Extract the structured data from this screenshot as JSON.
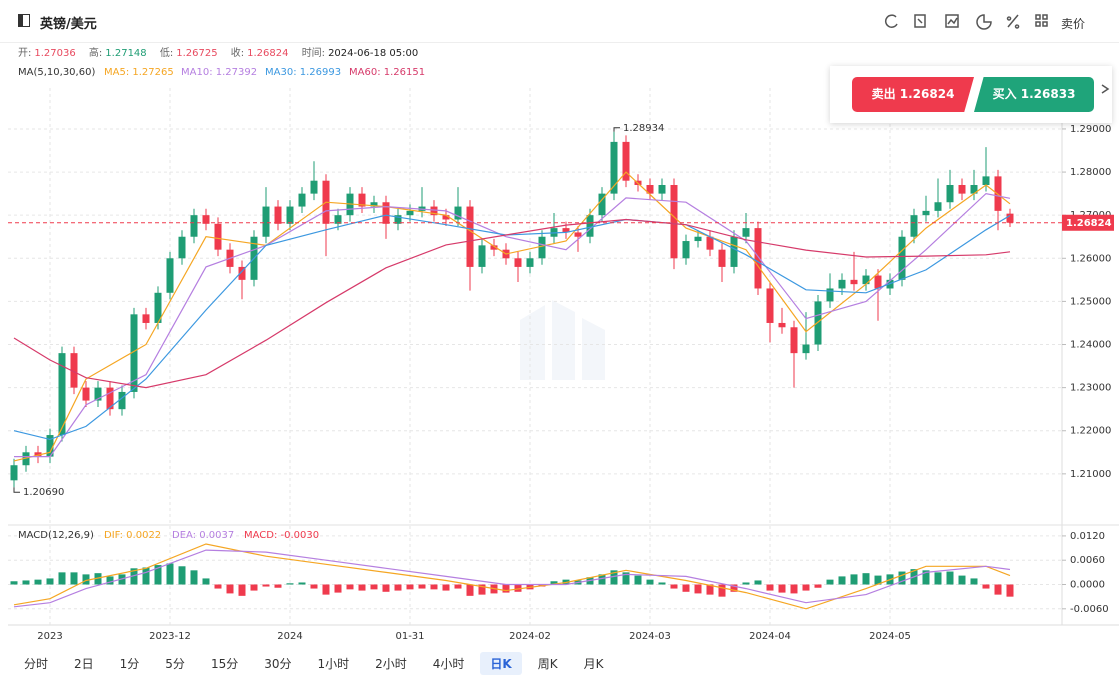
{
  "header": {
    "title": "英镑/美元",
    "price_type": "卖价"
  },
  "quote": {
    "labels": [
      "开:",
      "高:",
      "低:",
      "收:",
      "时间:"
    ],
    "time": "2024-06-18 05:00",
    "colors": [
      "#e84a5f",
      "#1f9d74",
      "#e84a5f",
      "#e84a5f"
    ]
  },
  "trade": {
    "sell": "卖出 1.26824",
    "buy": "买入 1.26833"
  },
  "timeframes": [
    "分时",
    "2日",
    "1分",
    "5分",
    "15分",
    "30分",
    "1小时",
    "2小时",
    "4小时",
    "日K",
    "周K",
    "月K"
  ],
  "active_timeframe": 9,
  "chart_data": [
    {
      "type": "candlestick",
      "indicator_label": "MA(5,10,30,60)",
      "up_color": "#1f9d74",
      "down_color": "#ef3a4d",
      "grid": true,
      "open": [
        1.2085,
        1.212,
        1.215,
        1.214,
        1.219,
        1.238,
        1.23,
        1.227,
        1.23,
        1.225,
        1.229,
        1.247,
        1.245,
        1.252,
        1.26,
        1.265,
        1.27,
        1.268,
        1.262,
        1.258,
        1.255,
        1.265,
        1.272,
        1.268,
        1.272,
        1.275,
        1.278,
        1.268,
        1.27,
        1.275,
        1.272,
        1.273,
        1.268,
        1.27,
        1.271,
        1.272,
        1.27,
        1.269,
        1.272,
        1.258,
        1.263,
        1.262,
        1.26,
        1.258,
        1.26,
        1.265,
        1.267,
        1.266,
        1.265,
        1.27,
        1.275,
        1.287,
        1.278,
        1.277,
        1.275,
        1.277,
        1.26,
        1.264,
        1.265,
        1.262,
        1.258,
        1.265,
        1.267,
        1.253,
        1.245,
        1.244,
        1.238,
        1.24,
        1.25,
        1.253,
        1.255,
        1.254,
        1.256,
        1.253,
        1.255,
        1.265,
        1.27,
        1.271,
        1.273,
        1.277,
        1.275,
        1.277,
        1.279,
        1.27036
      ],
      "high": [
        1.2135,
        1.2165,
        1.2165,
        1.2205,
        1.2395,
        1.2395,
        1.2315,
        1.2315,
        1.2315,
        1.2305,
        1.2485,
        1.2485,
        1.2535,
        1.2615,
        1.2665,
        1.2715,
        1.2715,
        1.2695,
        1.2635,
        1.2595,
        1.2665,
        1.2765,
        1.2735,
        1.2735,
        1.2765,
        1.2825,
        1.2795,
        1.2715,
        1.2765,
        1.2765,
        1.2745,
        1.2745,
        1.2715,
        1.2725,
        1.2765,
        1.2735,
        1.2715,
        1.2765,
        1.2735,
        1.2645,
        1.2645,
        1.2635,
        1.2615,
        1.2615,
        1.2665,
        1.2705,
        1.2685,
        1.2675,
        1.2715,
        1.2765,
        1.28934,
        1.2885,
        1.2795,
        1.2785,
        1.2785,
        1.2785,
        1.2655,
        1.2665,
        1.2665,
        1.2635,
        1.2665,
        1.2705,
        1.2685,
        1.2545,
        1.2485,
        1.2455,
        1.2475,
        1.2515,
        1.2565,
        1.2565,
        1.2615,
        1.2575,
        1.2575,
        1.2565,
        1.2665,
        1.2715,
        1.2745,
        1.2785,
        1.2805,
        1.2785,
        1.2805,
        1.2858,
        1.2805,
        1.27148
      ],
      "low": [
        1.2069,
        1.2105,
        1.2125,
        1.2125,
        1.2175,
        1.2285,
        1.2255,
        1.2255,
        1.2235,
        1.2235,
        1.2275,
        1.2435,
        1.2435,
        1.2505,
        1.2585,
        1.2635,
        1.2665,
        1.2605,
        1.2565,
        1.2505,
        1.2535,
        1.2635,
        1.2665,
        1.2665,
        1.2705,
        1.2735,
        1.2605,
        1.2665,
        1.2685,
        1.2705,
        1.2705,
        1.2645,
        1.2665,
        1.2685,
        1.2695,
        1.2685,
        1.2675,
        1.2675,
        1.2525,
        1.2565,
        1.2605,
        1.2585,
        1.2545,
        1.2565,
        1.2585,
        1.2635,
        1.2645,
        1.2615,
        1.2635,
        1.2685,
        1.2735,
        1.2765,
        1.2755,
        1.2735,
        1.2735,
        1.2575,
        1.2585,
        1.2625,
        1.2605,
        1.2545,
        1.2565,
        1.2635,
        1.2515,
        1.2405,
        1.2425,
        1.23,
        1.2365,
        1.2385,
        1.2485,
        1.2515,
        1.2525,
        1.2525,
        1.2455,
        1.2515,
        1.2535,
        1.2635,
        1.2685,
        1.2695,
        1.2715,
        1.2735,
        1.2735,
        1.2755,
        1.2665,
        1.26725
      ],
      "close": [
        1.212,
        1.215,
        1.214,
        1.219,
        1.238,
        1.23,
        1.227,
        1.23,
        1.225,
        1.229,
        1.247,
        1.245,
        1.252,
        1.26,
        1.265,
        1.27,
        1.268,
        1.262,
        1.258,
        1.255,
        1.265,
        1.272,
        1.268,
        1.272,
        1.275,
        1.278,
        1.268,
        1.27,
        1.275,
        1.272,
        1.273,
        1.268,
        1.27,
        1.271,
        1.272,
        1.27,
        1.269,
        1.272,
        1.258,
        1.263,
        1.262,
        1.26,
        1.258,
        1.26,
        1.265,
        1.267,
        1.266,
        1.265,
        1.27,
        1.275,
        1.287,
        1.278,
        1.277,
        1.275,
        1.277,
        1.26,
        1.264,
        1.265,
        1.262,
        1.258,
        1.265,
        1.267,
        1.253,
        1.245,
        1.244,
        1.238,
        1.24,
        1.25,
        1.253,
        1.255,
        1.254,
        1.256,
        1.253,
        1.255,
        1.265,
        1.27,
        1.271,
        1.273,
        1.277,
        1.275,
        1.277,
        1.279,
        1.271,
        1.26824
      ],
      "max_marker": {
        "index": 50,
        "label": "1.28934"
      },
      "min_marker": {
        "index": 0,
        "label": "1.20690"
      },
      "lines": [
        {
          "label": "MA5: 1.27265",
          "color": "#f5a623",
          "x": [
            0,
            3,
            6,
            11,
            16,
            21,
            26,
            31,
            36,
            41,
            46,
            51,
            56,
            61,
            66,
            71,
            76,
            81,
            83
          ],
          "values": [
            1.213,
            1.215,
            1.232,
            1.24,
            1.265,
            1.263,
            1.273,
            1.272,
            1.27,
            1.261,
            1.264,
            1.28,
            1.267,
            1.262,
            1.243,
            1.254,
            1.267,
            1.277,
            1.27265
          ]
        },
        {
          "label": "MA10: 1.27392",
          "color": "#b57fe0",
          "x": [
            0,
            3,
            6,
            11,
            16,
            21,
            26,
            31,
            36,
            41,
            46,
            51,
            56,
            61,
            66,
            71,
            76,
            81,
            83
          ],
          "values": [
            1.214,
            1.214,
            1.226,
            1.233,
            1.258,
            1.263,
            1.271,
            1.272,
            1.271,
            1.265,
            1.262,
            1.274,
            1.273,
            1.264,
            1.246,
            1.25,
            1.262,
            1.275,
            1.27392
          ]
        },
        {
          "label": "MA30: 1.26993",
          "color": "#3c98e0",
          "x": [
            0,
            3,
            6,
            11,
            16,
            21,
            26,
            31,
            36,
            41,
            46,
            51,
            56,
            61,
            66,
            71,
            76,
            81,
            83
          ],
          "values": [
            1.22,
            1.218,
            1.221,
            1.232,
            1.248,
            1.263,
            1.2666,
            1.27,
            1.2678,
            1.2654,
            1.266,
            1.269,
            1.2678,
            1.2608,
            1.2527,
            1.252,
            1.2573,
            1.2666,
            1.26993
          ]
        },
        {
          "label": "MA60: 1.26151",
          "color": "#d63a6a",
          "x": [
            0,
            3,
            6,
            11,
            16,
            21,
            26,
            31,
            36,
            41,
            46,
            51,
            56,
            61,
            66,
            71,
            76,
            81,
            83
          ],
          "values": [
            1.2415,
            1.2364,
            1.2323,
            1.23,
            1.233,
            1.241,
            1.2497,
            1.2578,
            1.2631,
            1.2654,
            1.2677,
            1.269,
            1.2678,
            1.2643,
            1.2619,
            1.2603,
            1.2605,
            1.2608,
            1.26151
          ]
        }
      ],
      "xticks": [
        {
          "value": 3.5,
          "label": "2023"
        },
        {
          "value": 13.5,
          "label": "2023-12"
        },
        {
          "value": 23.5,
          "label": "2024"
        },
        {
          "value": 33.5,
          "label": "01-31"
        },
        {
          "value": 43.5,
          "label": "2024-02"
        },
        {
          "value": 53.5,
          "label": "2024-03"
        },
        {
          "value": 63.5,
          "label": "2024-04"
        },
        {
          "value": 73.5,
          "label": "2024-05"
        }
      ],
      "ylim": [
        1.1986,
        1.2995
      ],
      "yticks": [
        {
          "value": 1.21,
          "label": "1.21000"
        },
        {
          "value": 1.22,
          "label": "1.22000"
        },
        {
          "value": 1.23,
          "label": "1.23000"
        },
        {
          "value": 1.24,
          "label": "1.24000"
        },
        {
          "value": 1.25,
          "label": "1.25000"
        },
        {
          "value": 1.26,
          "label": "1.26000"
        },
        {
          "value": 1.27,
          "label": "1.27000"
        },
        {
          "value": 1.28,
          "label": "1.28000"
        },
        {
          "value": 1.29,
          "label": "1.29000"
        }
      ]
    },
    {
      "type": "macd",
      "label": "MACD(12,26,9)",
      "value_label": "MACD: -0.0030",
      "up_color": "#1f9d74",
      "down_color": "#ef3a4d",
      "values": [
        0.0008,
        0.001,
        0.0012,
        0.0015,
        0.003,
        0.003,
        0.0025,
        0.0028,
        0.002,
        0.0025,
        0.004,
        0.0042,
        0.0048,
        0.0052,
        0.0045,
        0.0035,
        0.0015,
        -0.001,
        -0.0022,
        -0.0028,
        -0.0015,
        -0.0005,
        -0.0008,
        0.0003,
        0.0005,
        -0.001,
        -0.0025,
        -0.002,
        -0.0012,
        -0.0015,
        -0.0012,
        -0.0018,
        -0.0015,
        -0.0012,
        -0.001,
        -0.0012,
        -0.0015,
        -0.001,
        -0.0028,
        -0.0025,
        -0.0022,
        -0.002,
        -0.0018,
        -0.0012,
        -0.0005,
        0.0008,
        0.0012,
        0.001,
        0.0018,
        0.0025,
        0.0035,
        0.003,
        0.0022,
        0.0012,
        0.0005,
        -0.001,
        -0.0018,
        -0.0022,
        -0.0025,
        -0.003,
        -0.0018,
        0.0005,
        0.001,
        -0.0015,
        -0.002,
        -0.0022,
        -0.0015,
        -0.0008,
        0.0012,
        0.002,
        0.0025,
        0.0028,
        0.0022,
        0.0025,
        0.0032,
        0.0038,
        0.0035,
        0.003,
        0.0032,
        0.0022,
        0.0015,
        -0.001,
        -0.0025,
        -0.003
      ],
      "lines": [
        {
          "label": "DIF: 0.0022",
          "color": "#f5a623",
          "x": [
            0,
            3,
            6,
            11,
            16,
            21,
            26,
            31,
            36,
            41,
            46,
            51,
            56,
            61,
            66,
            71,
            76,
            81,
            83
          ],
          "values": [
            -0.005,
            -0.0035,
            0.001,
            0.004,
            0.01,
            0.007,
            0.005,
            0.003,
            0.001,
            -0.0015,
            0.0005,
            0.0035,
            0.001,
            -0.002,
            -0.006,
            -0.001,
            0.0045,
            0.0045,
            0.0022
          ]
        },
        {
          "label": "DEA: 0.0037",
          "color": "#b57fe0",
          "x": [
            0,
            3,
            6,
            11,
            16,
            21,
            26,
            31,
            36,
            41,
            46,
            51,
            56,
            61,
            66,
            71,
            76,
            81,
            83
          ],
          "values": [
            -0.0055,
            -0.0045,
            -0.001,
            0.003,
            0.0085,
            0.008,
            0.006,
            0.004,
            0.002,
            0.0,
            0.0,
            0.0025,
            0.002,
            -0.001,
            -0.0045,
            -0.0025,
            0.003,
            0.0045,
            0.0037
          ]
        }
      ],
      "ylim": [
        -0.01,
        0.0142
      ],
      "yticks": [
        {
          "value": 0.012,
          "label": "0.0120"
        },
        {
          "value": 0.006,
          "label": "0.0060"
        },
        {
          "value": 0,
          "label": "0.0000"
        },
        {
          "value": -0.006,
          "label": "-0.0060"
        }
      ]
    }
  ]
}
